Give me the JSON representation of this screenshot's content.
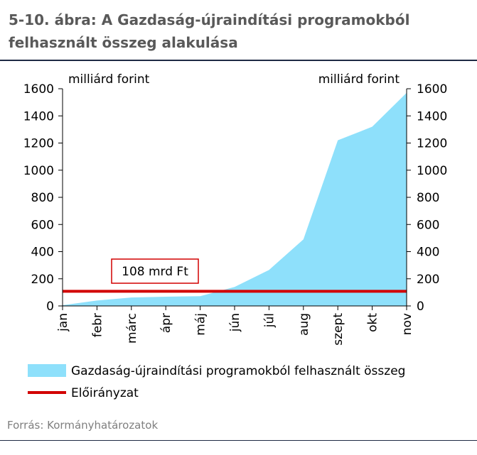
{
  "header": {
    "title_line1": "5-10. ábra: A Gazdaság-újraindítási programokból",
    "title_line2": "felhasznált összeg alakulása"
  },
  "footer": {
    "source": "Forrás: Kormányhatározatok"
  },
  "chart_data": {
    "type": "area",
    "categories": [
      "jan",
      "febr",
      "márc",
      "ápr",
      "máj",
      "jún",
      "júl",
      "aug",
      "szept",
      "okt",
      "nov"
    ],
    "series": [
      {
        "name": "Gazdaság-újraindítási programokból felhasznált összeg",
        "type": "area",
        "color": "#8ee0fb",
        "values": [
          5,
          40,
          62,
          68,
          72,
          140,
          265,
          490,
          1220,
          1320,
          1570
        ]
      },
      {
        "name": "Előirányzat",
        "type": "line",
        "color": "#d20000",
        "values": [
          108,
          108,
          108,
          108,
          108,
          108,
          108,
          108,
          108,
          108,
          108
        ]
      }
    ],
    "annotation": "108 mrd Ft",
    "ylabel_left": "milliárd forint",
    "ylabel_right": "milliárd forint",
    "ylim": [
      0,
      1600
    ],
    "yticks": [
      0,
      200,
      400,
      600,
      800,
      1000,
      1200,
      1400,
      1600
    ],
    "grid": false,
    "legend_position": "bottom"
  }
}
